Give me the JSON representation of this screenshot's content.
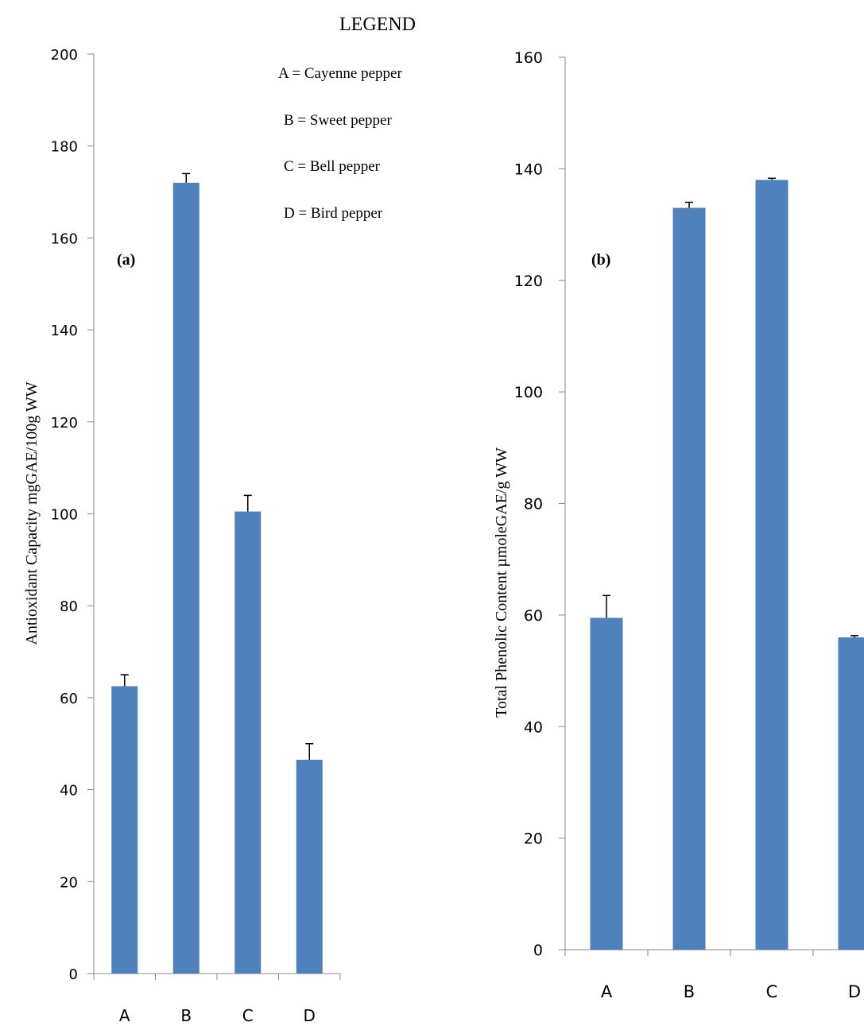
{
  "legend": {
    "title": "LEGEND",
    "entries": [
      "A = Cayenne pepper",
      "B = Sweet pepper",
      "C = Bell pepper",
      "D = Bird pepper"
    ]
  },
  "colors": {
    "bar": "#4f81bd",
    "axis": "#888888",
    "text": "#000000"
  },
  "chart_data": [
    {
      "type": "bar",
      "panel_label": "(a)",
      "categories": [
        "A",
        "B",
        "C",
        "D"
      ],
      "values": [
        62.5,
        172,
        100.5,
        46.5
      ],
      "error": [
        2.5,
        2,
        3.5,
        3.5
      ],
      "ylabel": "Antioxidant  Capacity mgGAE/100g WW",
      "xlabel": "",
      "ylim": [
        0,
        200
      ],
      "yticks": [
        0,
        20,
        40,
        60,
        80,
        100,
        120,
        140,
        160,
        180,
        200
      ],
      "grid": false
    },
    {
      "type": "bar",
      "panel_label": "(b)",
      "categories": [
        "A",
        "B",
        "C",
        "D"
      ],
      "values": [
        59.5,
        133,
        138,
        56
      ],
      "error": [
        4,
        1,
        0.3,
        0.3
      ],
      "ylabel": "Total Phenolic Content µmoleGAE/g WW",
      "xlabel": "",
      "ylim": [
        0,
        160
      ],
      "yticks": [
        0,
        20,
        40,
        60,
        80,
        100,
        120,
        140,
        160
      ],
      "grid": false
    }
  ]
}
